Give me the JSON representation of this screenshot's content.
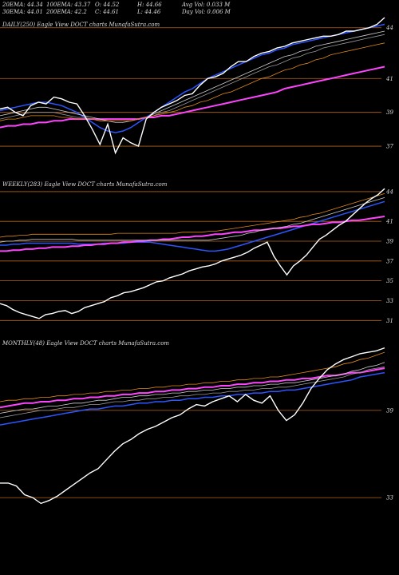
{
  "header": {
    "ema20": "20EMA: 44.34",
    "ema100": "100EMA: 43.37",
    "open": "O: 44.52",
    "high": "H: 44.66",
    "avg_vol": "Avg Vol: 0.033  M",
    "ema30": "30EMA: 44.01",
    "ema200": "200EMA: 42.2",
    "close": "C: 44.61",
    "low": "L: 44.46",
    "day_vol": "Day Vol: 0.006  M"
  },
  "chart_data": [
    {
      "type": "line",
      "panel": "daily",
      "label": "DAILY(250) Eagle  View  DOCT charts MunafaSutra.com",
      "y_ticks": [
        "44",
        "41",
        "39",
        "37"
      ],
      "y_tick_values": [
        44,
        41,
        39,
        37
      ],
      "ylim": [
        36.2,
        44.6
      ],
      "grid": "horizontal-orange",
      "series": [
        {
          "color": "#ffffff",
          "values": [
            39.2,
            39.3,
            39.0,
            38.8,
            39.4,
            39.6,
            39.5,
            39.9,
            39.8,
            39.6,
            39.5,
            38.8,
            38.0,
            37.1,
            38.3,
            36.6,
            37.5,
            37.2,
            37.0,
            38.6,
            39.0,
            39.3,
            39.5,
            39.7,
            40.0,
            40.1,
            40.6,
            41.0,
            41.1,
            41.3,
            41.7,
            42.0,
            42.0,
            42.3,
            42.5,
            42.6,
            42.8,
            42.9,
            43.1,
            43.2,
            43.3,
            43.4,
            43.5,
            43.5,
            43.6,
            43.8,
            43.8,
            43.9,
            44.0,
            44.2,
            44.6
          ]
        },
        {
          "color": "#2b55ff",
          "values": [
            39.1,
            39.2,
            39.3,
            39.4,
            39.5,
            39.6,
            39.6,
            39.5,
            39.4,
            39.2,
            39.0,
            38.7,
            38.4,
            38.1,
            37.9,
            37.8,
            37.9,
            38.1,
            38.4,
            38.7,
            39.0,
            39.3,
            39.6,
            39.9,
            40.2,
            40.4,
            40.7,
            41.0,
            41.2,
            41.4,
            41.6,
            41.8,
            42.0,
            42.2,
            42.4,
            42.5,
            42.7,
            42.8,
            43.0,
            43.1,
            43.2,
            43.3,
            43.4,
            43.5,
            43.6,
            43.7,
            43.8,
            43.9,
            44.0,
            44.1,
            44.2
          ]
        },
        {
          "color": "#ff44ff",
          "values": [
            38.1,
            38.2,
            38.2,
            38.3,
            38.3,
            38.4,
            38.4,
            38.5,
            38.5,
            38.6,
            38.6,
            38.6,
            38.6,
            38.6,
            38.6,
            38.6,
            38.6,
            38.6,
            38.6,
            38.7,
            38.7,
            38.8,
            38.8,
            38.9,
            39.0,
            39.1,
            39.2,
            39.3,
            39.4,
            39.5,
            39.6,
            39.7,
            39.8,
            39.9,
            40.0,
            40.1,
            40.2,
            40.4,
            40.5,
            40.6,
            40.7,
            40.8,
            40.9,
            41.0,
            41.1,
            41.2,
            41.3,
            41.4,
            41.5,
            41.6,
            41.7
          ]
        },
        {
          "color": "#cccccc",
          "values": [
            38.8,
            38.9,
            39.0,
            39.1,
            39.2,
            39.3,
            39.3,
            39.2,
            39.1,
            39.0,
            38.9,
            38.8,
            38.7,
            38.6,
            38.5,
            38.4,
            38.4,
            38.5,
            38.6,
            38.7,
            38.9,
            39.1,
            39.3,
            39.5,
            39.7,
            39.9,
            40.1,
            40.3,
            40.5,
            40.7,
            40.9,
            41.1,
            41.3,
            41.5,
            41.7,
            41.9,
            42.1,
            42.3,
            42.4,
            42.6,
            42.7,
            42.9,
            43.0,
            43.1,
            43.2,
            43.3,
            43.4,
            43.5,
            43.6,
            43.7,
            43.8
          ]
        },
        {
          "color": "#999999",
          "values": [
            38.6,
            38.7,
            38.8,
            38.9,
            39.0,
            39.0,
            39.0,
            39.0,
            38.9,
            38.8,
            38.7,
            38.7,
            38.6,
            38.5,
            38.5,
            38.4,
            38.4,
            38.5,
            38.6,
            38.7,
            38.8,
            39.0,
            39.1,
            39.3,
            39.5,
            39.7,
            39.9,
            40.1,
            40.3,
            40.5,
            40.7,
            40.9,
            41.1,
            41.3,
            41.5,
            41.7,
            41.8,
            42.0,
            42.2,
            42.3,
            42.5,
            42.6,
            42.8,
            42.9,
            43.0,
            43.1,
            43.2,
            43.3,
            43.4,
            43.5,
            43.6
          ]
        },
        {
          "color": "#e08a1a",
          "values": [
            38.5,
            38.6,
            38.6,
            38.7,
            38.8,
            38.8,
            38.8,
            38.8,
            38.7,
            38.7,
            38.6,
            38.6,
            38.6,
            38.5,
            38.5,
            38.5,
            38.5,
            38.5,
            38.6,
            38.7,
            38.8,
            38.9,
            39.0,
            39.1,
            39.3,
            39.4,
            39.6,
            39.7,
            39.9,
            40.1,
            40.2,
            40.4,
            40.6,
            40.8,
            41.0,
            41.1,
            41.3,
            41.5,
            41.6,
            41.8,
            41.9,
            42.1,
            42.2,
            42.4,
            42.5,
            42.6,
            42.7,
            42.8,
            42.9,
            43.0,
            43.1
          ]
        }
      ]
    },
    {
      "type": "line",
      "panel": "weekly",
      "label": "WEEKLY(283) Eagle  View  DOCT charts MunafaSutra.com",
      "y_ticks": [
        "44",
        "41",
        "39",
        "37",
        "35",
        "33",
        "31"
      ],
      "y_tick_values": [
        44,
        41,
        39,
        37,
        35,
        33,
        31
      ],
      "ylim": [
        30.3,
        44.8
      ],
      "grid": "horizontal-orange",
      "series": [
        {
          "color": "#ffffff",
          "values": [
            32.7,
            32.5,
            32.1,
            31.8,
            31.6,
            31.4,
            31.2,
            31.6,
            31.7,
            31.9,
            32.0,
            31.7,
            31.9,
            32.3,
            32.5,
            32.7,
            32.9,
            33.3,
            33.5,
            33.8,
            33.9,
            34.1,
            34.3,
            34.6,
            34.9,
            35.0,
            35.3,
            35.5,
            35.7,
            36.0,
            36.2,
            36.4,
            36.5,
            36.7,
            37.0,
            37.2,
            37.4,
            37.6,
            37.9,
            38.3,
            38.6,
            38.9,
            37.5,
            36.5,
            35.6,
            36.5,
            37.0,
            37.6,
            38.4,
            39.2,
            39.6,
            40.1,
            40.6,
            41.0,
            41.6,
            42.2,
            42.8,
            43.3,
            43.7,
            44.3
          ]
        },
        {
          "color": "#2b55ff",
          "values": [
            38.6,
            38.6,
            38.7,
            38.7,
            38.8,
            38.8,
            38.8,
            38.8,
            38.8,
            38.8,
            38.8,
            38.8,
            38.7,
            38.7,
            38.7,
            38.7,
            38.8,
            38.8,
            38.8,
            38.8,
            38.9,
            38.9,
            38.9,
            38.9,
            38.8,
            38.7,
            38.6,
            38.5,
            38.4,
            38.3,
            38.2,
            38.1,
            38.0,
            38.0,
            38.1,
            38.2,
            38.4,
            38.6,
            38.8,
            39.0,
            39.2,
            39.4,
            39.6,
            39.8,
            40.0,
            40.2,
            40.4,
            40.6,
            40.8,
            41.0,
            41.2,
            41.4,
            41.6,
            41.8,
            42.0,
            42.2,
            42.4,
            42.6,
            42.8,
            43.0
          ]
        },
        {
          "color": "#ff44ff",
          "values": [
            38.0,
            38.0,
            38.1,
            38.1,
            38.2,
            38.2,
            38.3,
            38.3,
            38.4,
            38.4,
            38.4,
            38.5,
            38.5,
            38.6,
            38.6,
            38.7,
            38.7,
            38.8,
            38.8,
            38.9,
            38.9,
            39.0,
            39.0,
            39.1,
            39.1,
            39.2,
            39.2,
            39.3,
            39.4,
            39.4,
            39.5,
            39.5,
            39.6,
            39.7,
            39.7,
            39.8,
            39.9,
            39.9,
            40.0,
            40.1,
            40.1,
            40.2,
            40.3,
            40.3,
            40.4,
            40.5,
            40.5,
            40.6,
            40.7,
            40.7,
            40.8,
            40.9,
            40.9,
            41.0,
            41.1,
            41.1,
            41.2,
            41.3,
            41.4,
            41.5
          ]
        },
        {
          "color": "#cccccc",
          "values": [
            38.9,
            39.0,
            39.0,
            39.1,
            39.1,
            39.2,
            39.2,
            39.2,
            39.2,
            39.2,
            39.2,
            39.2,
            39.1,
            39.1,
            39.1,
            39.1,
            39.1,
            39.1,
            39.1,
            39.1,
            39.1,
            39.1,
            39.1,
            39.1,
            39.1,
            39.1,
            39.1,
            39.1,
            39.1,
            39.1,
            39.1,
            39.1,
            39.1,
            39.2,
            39.3,
            39.4,
            39.5,
            39.6,
            39.8,
            39.9,
            40.1,
            40.2,
            40.3,
            40.4,
            40.5,
            40.7,
            40.8,
            41.0,
            41.2,
            41.4,
            41.6,
            41.8,
            42.0,
            42.2,
            42.4,
            42.6,
            42.8,
            43.0,
            43.2,
            43.4
          ]
        },
        {
          "color": "#e08a1a",
          "values": [
            39.4,
            39.5,
            39.5,
            39.6,
            39.6,
            39.7,
            39.7,
            39.7,
            39.7,
            39.7,
            39.7,
            39.7,
            39.7,
            39.7,
            39.7,
            39.7,
            39.7,
            39.7,
            39.8,
            39.8,
            39.8,
            39.8,
            39.8,
            39.8,
            39.8,
            39.8,
            39.8,
            39.8,
            39.9,
            39.9,
            39.9,
            39.9,
            40.0,
            40.0,
            40.1,
            40.2,
            40.3,
            40.4,
            40.5,
            40.6,
            40.7,
            40.8,
            40.9,
            41.0,
            41.1,
            41.2,
            41.4,
            41.5,
            41.7,
            41.8,
            42.0,
            42.2,
            42.4,
            42.6,
            42.8,
            43.0,
            43.2,
            43.4,
            43.6,
            43.8
          ]
        }
      ]
    },
    {
      "type": "line",
      "panel": "monthly",
      "label": "MONTHLY(48) Eagle  View  DOCT charts MunafaSutra.com",
      "y_ticks": [
        "39",
        "33"
      ],
      "y_tick_values": [
        39,
        33
      ],
      "ylim": [
        28.5,
        43.5
      ],
      "grid": "horizontal-orange",
      "series": [
        {
          "color": "#ffffff",
          "values": [
            34.0,
            34.0,
            33.8,
            33.2,
            33.0,
            32.6,
            32.8,
            33.1,
            33.5,
            33.9,
            34.3,
            34.7,
            35.0,
            35.6,
            36.2,
            36.7,
            37.0,
            37.4,
            37.7,
            37.9,
            38.2,
            38.5,
            38.7,
            39.1,
            39.4,
            39.3,
            39.6,
            39.8,
            40.0,
            39.6,
            40.1,
            39.7,
            39.5,
            40.0,
            39.0,
            38.3,
            38.7,
            39.5,
            40.5,
            41.2,
            41.8,
            42.2,
            42.5,
            42.7,
            42.9,
            43.0,
            43.1,
            43.3
          ]
        },
        {
          "color": "#2b55ff",
          "values": [
            38.0,
            38.1,
            38.2,
            38.3,
            38.4,
            38.5,
            38.6,
            38.7,
            38.8,
            38.9,
            39.0,
            39.1,
            39.1,
            39.2,
            39.3,
            39.3,
            39.4,
            39.5,
            39.5,
            39.6,
            39.6,
            39.7,
            39.7,
            39.8,
            39.8,
            39.9,
            39.9,
            40.0,
            40.0,
            40.1,
            40.1,
            40.2,
            40.2,
            40.3,
            40.3,
            40.4,
            40.4,
            40.5,
            40.6,
            40.7,
            40.8,
            40.9,
            41.0,
            41.1,
            41.3,
            41.4,
            41.5,
            41.6
          ]
        },
        {
          "color": "#ff44ff",
          "values": [
            39.2,
            39.3,
            39.4,
            39.5,
            39.5,
            39.6,
            39.6,
            39.7,
            39.7,
            39.8,
            39.8,
            39.9,
            39.9,
            40.0,
            40.0,
            40.1,
            40.1,
            40.2,
            40.2,
            40.3,
            40.3,
            40.4,
            40.4,
            40.5,
            40.5,
            40.6,
            40.6,
            40.7,
            40.7,
            40.8,
            40.8,
            40.9,
            40.9,
            41.0,
            41.0,
            41.1,
            41.1,
            41.2,
            41.2,
            41.3,
            41.4,
            41.4,
            41.5,
            41.6,
            41.6,
            41.7,
            41.8,
            41.9
          ]
        },
        {
          "color": "#cccccc",
          "values": [
            38.8,
            38.9,
            39.0,
            39.1,
            39.1,
            39.2,
            39.3,
            39.3,
            39.4,
            39.5,
            39.5,
            39.6,
            39.7,
            39.7,
            39.8,
            39.9,
            39.9,
            40.0,
            40.0,
            40.1,
            40.1,
            40.2,
            40.2,
            40.3,
            40.3,
            40.4,
            40.4,
            40.5,
            40.5,
            40.6,
            40.6,
            40.7,
            40.7,
            40.8,
            40.8,
            40.9,
            40.9,
            41.0,
            41.1,
            41.2,
            41.3,
            41.4,
            41.5,
            41.7,
            41.8,
            42.0,
            42.1,
            42.3
          ]
        },
        {
          "color": "#999999",
          "values": [
            38.5,
            38.6,
            38.7,
            38.8,
            38.9,
            39.0,
            39.0,
            39.1,
            39.2,
            39.2,
            39.3,
            39.4,
            39.4,
            39.5,
            39.6,
            39.6,
            39.7,
            39.7,
            39.8,
            39.8,
            39.9,
            39.9,
            40.0,
            40.0,
            40.1,
            40.1,
            40.2,
            40.2,
            40.3,
            40.3,
            40.4,
            40.4,
            40.5,
            40.5,
            40.6,
            40.6,
            40.7,
            40.8,
            40.9,
            41.0,
            41.1,
            41.2,
            41.3,
            41.5,
            41.6,
            41.8,
            41.9,
            42.0
          ]
        },
        {
          "color": "#e08a1a",
          "values": [
            39.6,
            39.7,
            39.7,
            39.8,
            39.8,
            39.9,
            39.9,
            40.0,
            40.0,
            40.1,
            40.1,
            40.2,
            40.2,
            40.3,
            40.3,
            40.4,
            40.4,
            40.5,
            40.5,
            40.6,
            40.6,
            40.7,
            40.7,
            40.8,
            40.8,
            40.9,
            40.9,
            41.0,
            41.0,
            41.1,
            41.1,
            41.2,
            41.2,
            41.3,
            41.3,
            41.4,
            41.5,
            41.6,
            41.7,
            41.8,
            41.9,
            42.0,
            42.2,
            42.3,
            42.5,
            42.6,
            42.8,
            43.0
          ]
        }
      ]
    }
  ]
}
